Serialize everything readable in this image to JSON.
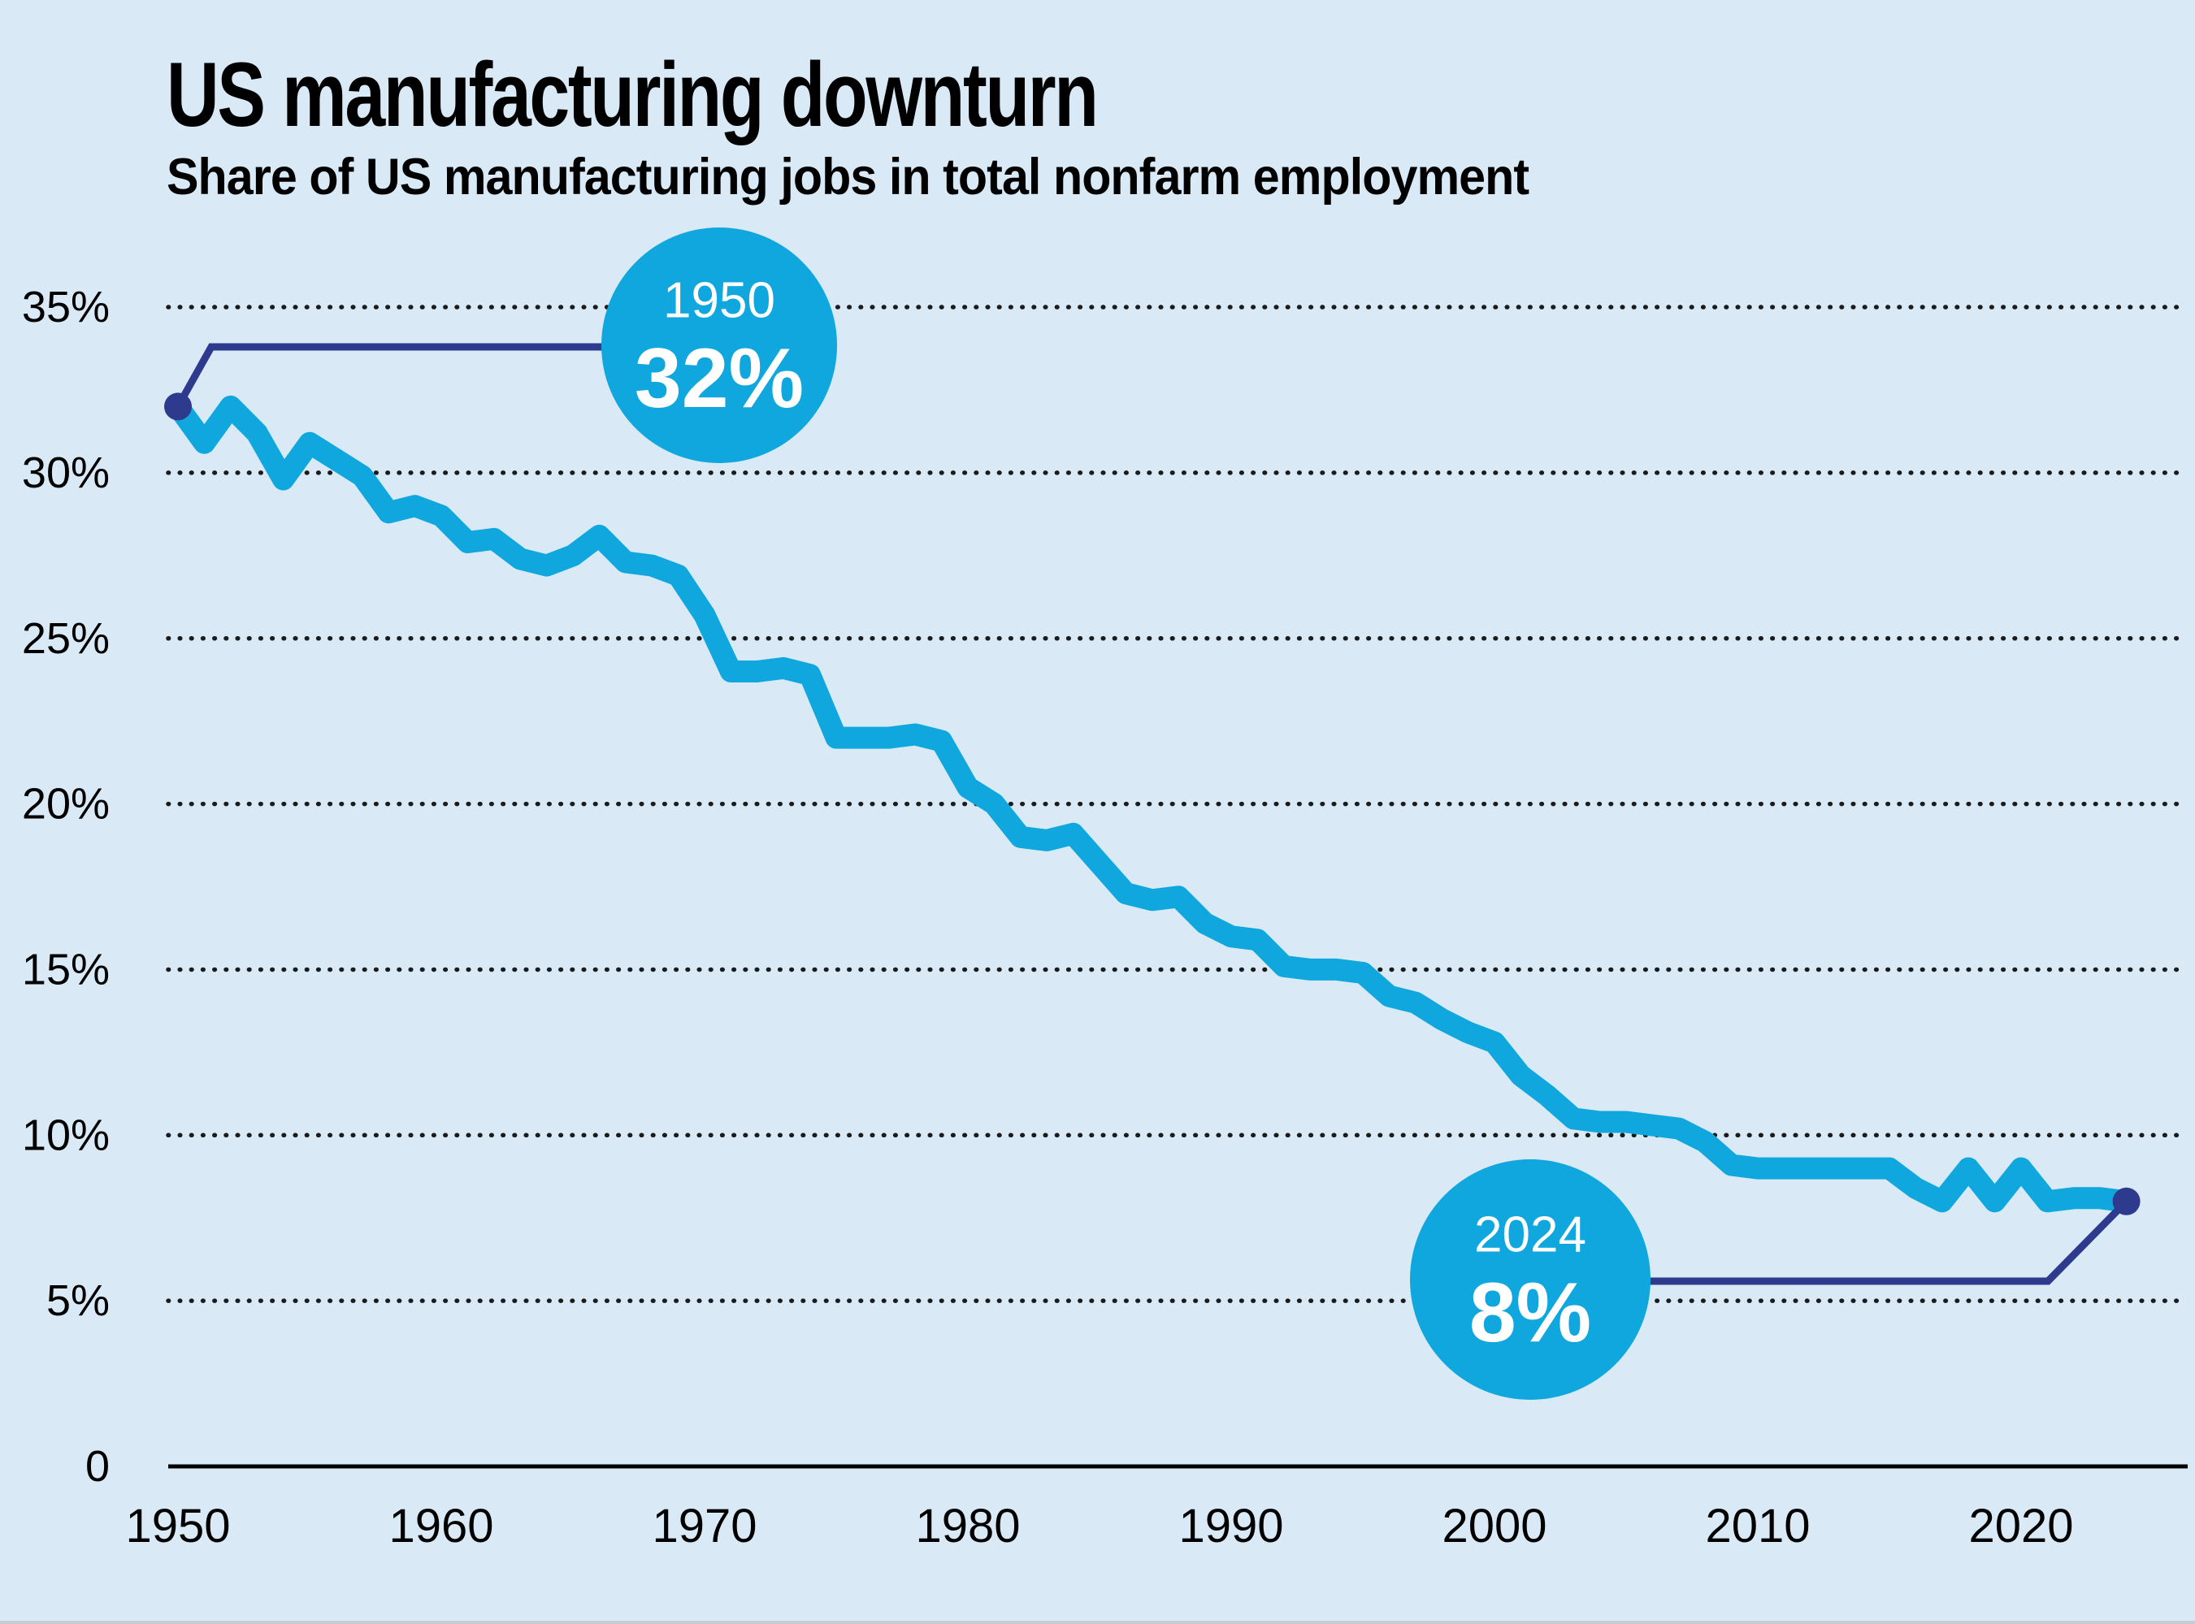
{
  "header": {
    "title": "US manufacturing downturn",
    "subtitle": "Share of US manufacturing jobs in total nonfarm employment"
  },
  "chart_data": {
    "type": "line",
    "title": "US manufacturing downturn",
    "subtitle": "Share of US manufacturing jobs in total nonfarm employment",
    "grid": "horizontal dotted gridlines, solid baseline at 0",
    "legend_position": "none",
    "xlim": [
      1950,
      2024
    ],
    "ylim": [
      0,
      36
    ],
    "x_ticks": [
      {
        "label": "1950",
        "year": 1950
      },
      {
        "label": "1960",
        "year": 1960
      },
      {
        "label": "1970",
        "year": 1970
      },
      {
        "label": "1980",
        "year": 1980
      },
      {
        "label": "1990",
        "year": 1990
      },
      {
        "label": "2000",
        "year": 2000
      },
      {
        "label": "2010",
        "year": 2010
      },
      {
        "label": "2020",
        "year": 2020
      }
    ],
    "y_ticks": [
      {
        "label": "35%",
        "value": 35
      },
      {
        "label": "30%",
        "value": 30
      },
      {
        "label": "25%",
        "value": 25
      },
      {
        "label": "20%",
        "value": 20
      },
      {
        "label": "15%",
        "value": 15
      },
      {
        "label": "10%",
        "value": 10
      },
      {
        "label": "5%",
        "value": 5
      },
      {
        "label": "0",
        "value": 0
      }
    ],
    "x": [
      1950,
      1951,
      1952,
      1953,
      1954,
      1955,
      1956,
      1957,
      1958,
      1959,
      1960,
      1961,
      1962,
      1963,
      1964,
      1965,
      1966,
      1967,
      1968,
      1969,
      1970,
      1971,
      1972,
      1973,
      1974,
      1975,
      1976,
      1977,
      1978,
      1979,
      1980,
      1981,
      1982,
      1983,
      1984,
      1985,
      1986,
      1987,
      1988,
      1989,
      1990,
      1991,
      1992,
      1993,
      1994,
      1995,
      1996,
      1997,
      1998,
      1999,
      2000,
      2001,
      2002,
      2003,
      2004,
      2005,
      2006,
      2007,
      2008,
      2009,
      2010,
      2011,
      2012,
      2013,
      2014,
      2015,
      2016,
      2017,
      2018,
      2019,
      2020,
      2021,
      2022,
      2023,
      2024
    ],
    "series": [
      {
        "name": "Manufacturing share of nonfarm employment (%)",
        "values": [
          32.0,
          30.9,
          32.0,
          31.2,
          29.8,
          30.9,
          30.4,
          29.9,
          28.8,
          29.0,
          28.7,
          27.9,
          28.0,
          27.4,
          27.2,
          27.5,
          28.1,
          27.3,
          27.2,
          26.9,
          25.7,
          24.0,
          24.0,
          24.1,
          23.9,
          22.0,
          22.0,
          22.0,
          22.1,
          21.9,
          20.5,
          20.0,
          19.0,
          18.9,
          19.1,
          18.2,
          17.3,
          17.1,
          17.2,
          16.4,
          16.0,
          15.9,
          15.1,
          15.0,
          15.0,
          14.9,
          14.2,
          14.0,
          13.5,
          13.1,
          12.8,
          11.8,
          11.2,
          10.5,
          10.4,
          10.4,
          10.3,
          10.2,
          9.8,
          9.1,
          9.0,
          9.0,
          9.0,
          9.0,
          9.0,
          9.0,
          8.4,
          8.0,
          9.0,
          8.0,
          9.0,
          8.0,
          8.1,
          8.1,
          8.0
        ]
      }
    ],
    "annotations": [
      {
        "year": 1950,
        "value": 32,
        "year_label": "1950",
        "value_label": "32%"
      },
      {
        "year": 2024,
        "value": 8,
        "year_label": "2024",
        "value_label": "8%"
      }
    ],
    "colors": {
      "line": "#0fa7dd",
      "annotation_line": "#2e3a8e",
      "callout_fill": "#0fa7dd",
      "callout_text": "#ffffff",
      "background": "#d9eaf6",
      "gridline": "#1b1b1b",
      "text": "#000000"
    }
  }
}
